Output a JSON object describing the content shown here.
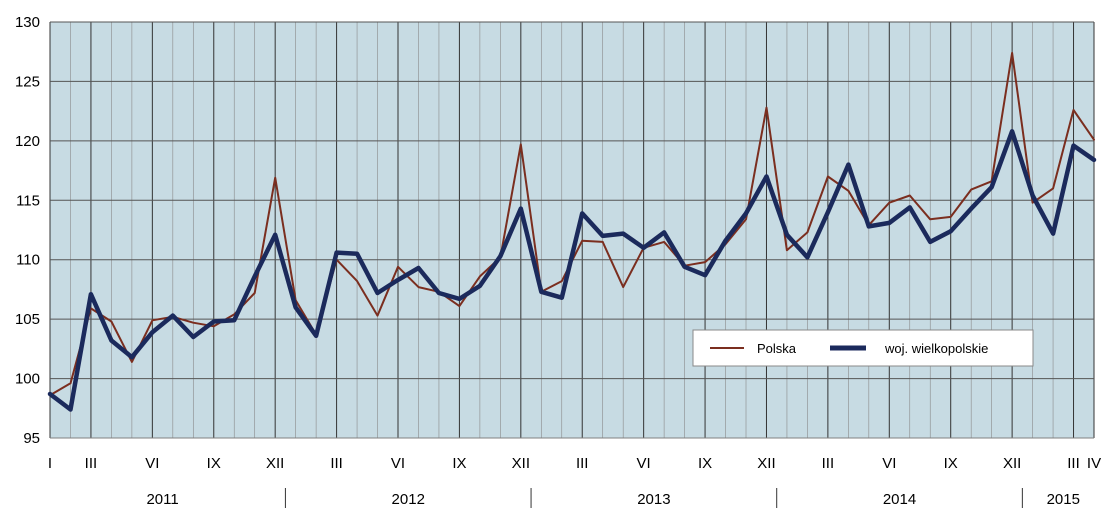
{
  "chart_data": {
    "type": "line",
    "ylim": [
      95,
      130
    ],
    "yticks": [
      95,
      100,
      105,
      110,
      115,
      120,
      125,
      130
    ],
    "x_month_labels": [
      {
        "i": 0,
        "label": "I"
      },
      {
        "i": 2,
        "label": "III"
      },
      {
        "i": 5,
        "label": "VI"
      },
      {
        "i": 8,
        "label": "IX"
      },
      {
        "i": 11,
        "label": "XII"
      },
      {
        "i": 14,
        "label": "III"
      },
      {
        "i": 17,
        "label": "VI"
      },
      {
        "i": 20,
        "label": "IX"
      },
      {
        "i": 23,
        "label": "XII"
      },
      {
        "i": 26,
        "label": "III"
      },
      {
        "i": 29,
        "label": "VI"
      },
      {
        "i": 32,
        "label": "IX"
      },
      {
        "i": 35,
        "label": "XII"
      },
      {
        "i": 38,
        "label": "III"
      },
      {
        "i": 41,
        "label": "VI"
      },
      {
        "i": 44,
        "label": "IX"
      },
      {
        "i": 47,
        "label": "XII"
      },
      {
        "i": 50,
        "label": "III"
      },
      {
        "i": 51,
        "label": "IV"
      }
    ],
    "years": [
      {
        "label": "2011",
        "start": 0,
        "end": 11
      },
      {
        "label": "2012",
        "start": 12,
        "end": 23
      },
      {
        "label": "2013",
        "start": 24,
        "end": 35
      },
      {
        "label": "2014",
        "start": 36,
        "end": 47
      },
      {
        "label": "2015",
        "start": 48,
        "end": 51
      }
    ],
    "series": [
      {
        "name": "Polska",
        "color": "#7b2e1f",
        "values": [
          98.6,
          99.6,
          105.9,
          104.8,
          101.4,
          104.9,
          105.2,
          104.7,
          104.4,
          105.4,
          107.2,
          116.9,
          106.6,
          103.7,
          110.0,
          108.2,
          105.3,
          109.4,
          107.7,
          107.3,
          106.1,
          108.6,
          110.2,
          119.7,
          107.3,
          108.2,
          111.6,
          111.5,
          107.7,
          111.0,
          111.5,
          109.5,
          109.8,
          111.3,
          113.4,
          122.8,
          110.8,
          112.3,
          117.0,
          115.8,
          112.9,
          114.8,
          115.4,
          113.4,
          113.6,
          115.9,
          116.6,
          127.4,
          114.8,
          116.0,
          122.6,
          120.1
        ]
      },
      {
        "name": "woj. wielkopolskie",
        "color": "#1b2a5c",
        "values": [
          98.7,
          97.4,
          107.1,
          103.2,
          101.8,
          103.9,
          105.3,
          103.5,
          104.8,
          104.9,
          108.6,
          112.1,
          106.0,
          103.6,
          110.6,
          110.5,
          107.2,
          108.3,
          109.3,
          107.2,
          106.7,
          107.8,
          110.3,
          114.3,
          107.3,
          106.8,
          113.9,
          112.0,
          112.2,
          111.0,
          112.3,
          109.4,
          108.7,
          111.6,
          113.9,
          117.0,
          112.1,
          110.2,
          114.0,
          118.0,
          112.8,
          113.1,
          114.4,
          111.5,
          112.4,
          114.3,
          116.1,
          120.8,
          115.4,
          112.2,
          119.6,
          118.4
        ]
      }
    ],
    "legend_position": "right-middle",
    "grid": true
  }
}
